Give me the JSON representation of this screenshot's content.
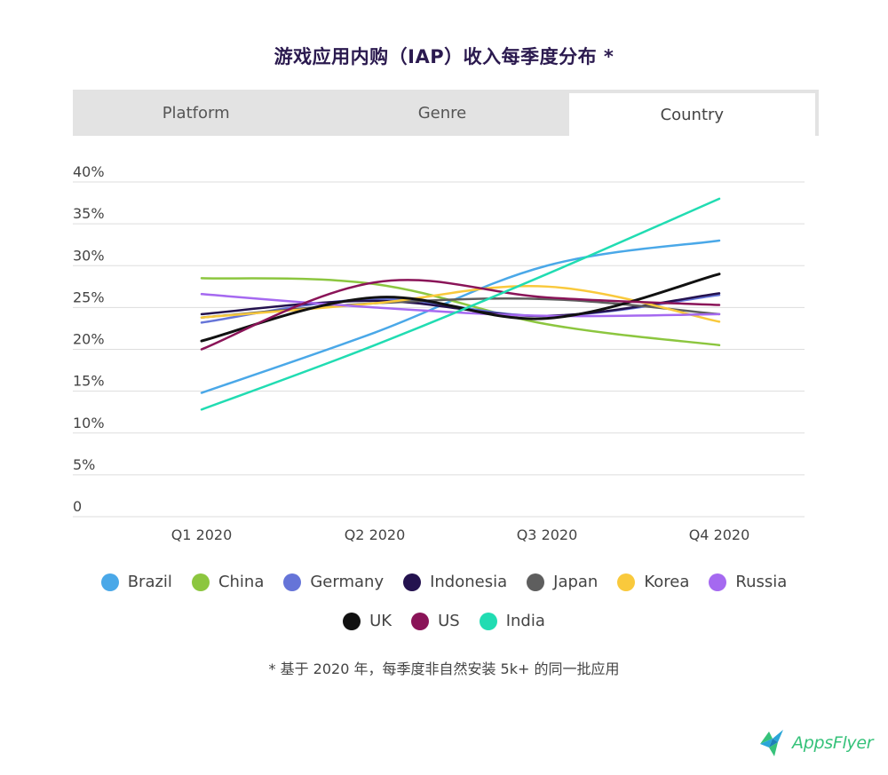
{
  "title": "游戏应用内购（IAP）收入每季度分布 *",
  "tabs": [
    {
      "label": "Platform",
      "active": false
    },
    {
      "label": "Genre",
      "active": false
    },
    {
      "label": "Country",
      "active": true
    }
  ],
  "chart_data": {
    "type": "line",
    "categories": [
      "Q1 2020",
      "Q2 2020",
      "Q3 2020",
      "Q4 2020"
    ],
    "yticks": [
      "0",
      "5%",
      "10%",
      "15%",
      "20%",
      "25%",
      "30%",
      "35%",
      "40%"
    ],
    "ylim": [
      0,
      40
    ],
    "series": [
      {
        "name": "Brazil",
        "color": "#4aa8e8",
        "values": [
          14.8,
          22.0,
          30.0,
          33.0
        ]
      },
      {
        "name": "China",
        "color": "#8cc63f",
        "values": [
          28.5,
          27.8,
          23.0,
          20.5
        ]
      },
      {
        "name": "Germany",
        "color": "#6574d8",
        "values": [
          23.2,
          26.0,
          24.0,
          26.5
        ]
      },
      {
        "name": "Indonesia",
        "color": "#24124f",
        "values": [
          24.2,
          25.8,
          24.0,
          26.7
        ]
      },
      {
        "name": "Japan",
        "color": "#5e5e5e",
        "values": [
          23.8,
          25.5,
          26.0,
          24.2
        ]
      },
      {
        "name": "Korea",
        "color": "#f9c93c",
        "values": [
          23.8,
          25.5,
          27.5,
          23.3
        ]
      },
      {
        "name": "Russia",
        "color": "#a569f0",
        "values": [
          26.6,
          25.0,
          24.0,
          24.2
        ]
      },
      {
        "name": "UK",
        "color": "#111111",
        "values": [
          21.0,
          26.2,
          23.7,
          29.0
        ]
      },
      {
        "name": "US",
        "color": "#8a1458",
        "values": [
          20.0,
          28.0,
          26.2,
          25.3
        ]
      },
      {
        "name": "India",
        "color": "#21dcb2",
        "values": [
          12.8,
          20.5,
          29.0,
          38.0
        ]
      }
    ]
  },
  "footnote": "* 基于 2020 年，每季度非自然安装 5k+ 的同一批应用",
  "logo": {
    "text": "AppsFlyer",
    "color": "#36c27a"
  }
}
